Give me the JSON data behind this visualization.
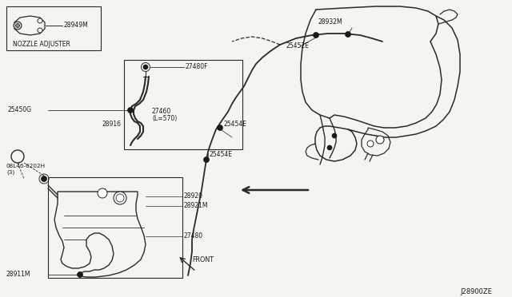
{
  "bg_color": "#f5f5f0",
  "diagram_code": "J28900ZE",
  "lc": "#2a2a2a",
  "labels": {
    "nozzle_adjuster": "NOZZLE ADJUSTER",
    "28949M": "28949M",
    "27480F": "27480F",
    "25450G": "25450G",
    "27460": "27460",
    "L570": "(L=570)",
    "28916": "28916",
    "bolt": "B",
    "08L46_6202H": "08L46-6202H",
    "3": "(3)",
    "28920": "28920",
    "28921M": "28921M",
    "27480": "27480",
    "28911M": "28911M",
    "28932M": "28932M",
    "25452E": "25452E",
    "25454E": "25454E",
    "FRONT": "FRONT"
  }
}
